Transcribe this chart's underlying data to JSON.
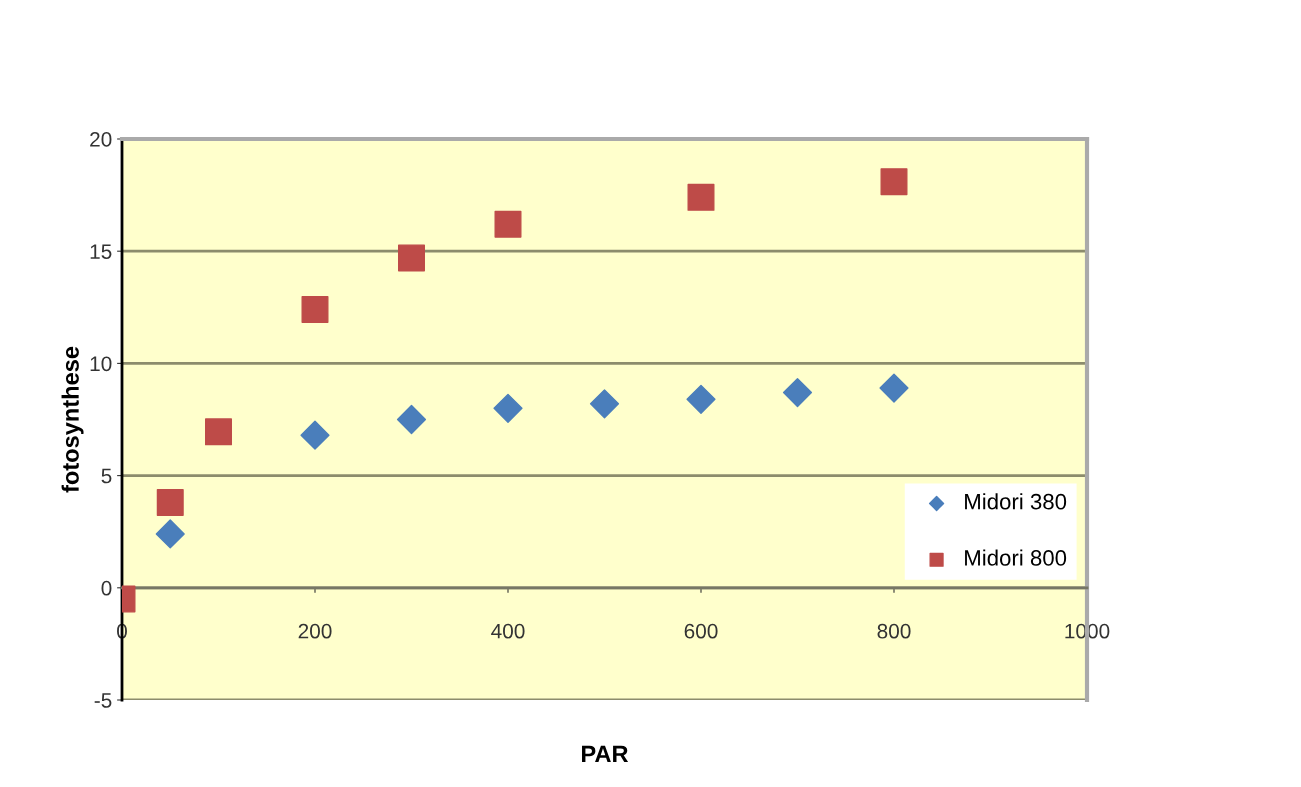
{
  "chart_data": {
    "type": "scatter",
    "xlabel": "PAR",
    "ylabel": "fotosynthese",
    "xlim": [
      0,
      1000
    ],
    "xticks": [
      0,
      200,
      400,
      600,
      800,
      1000
    ],
    "ylim": [
      -5,
      20
    ],
    "yticks": [
      -5,
      0,
      5,
      10,
      15,
      20
    ],
    "grid": "y",
    "legend": "right",
    "series": [
      {
        "name": "Midori 380",
        "color": "#4a7ebb",
        "marker": "diamond",
        "x": [
          50,
          200,
          300,
          400,
          500,
          600,
          700,
          800
        ],
        "values": [
          2.4,
          6.8,
          7.5,
          8.0,
          8.2,
          8.4,
          8.7,
          8.9
        ]
      },
      {
        "name": "Midori 800",
        "color": "#be4b48",
        "marker": "square",
        "x": [
          0,
          50,
          100,
          200,
          300,
          400,
          600,
          800
        ],
        "values": [
          -0.5,
          3.8,
          6.95,
          12.4,
          14.7,
          16.2,
          17.4,
          18.1
        ]
      }
    ]
  }
}
